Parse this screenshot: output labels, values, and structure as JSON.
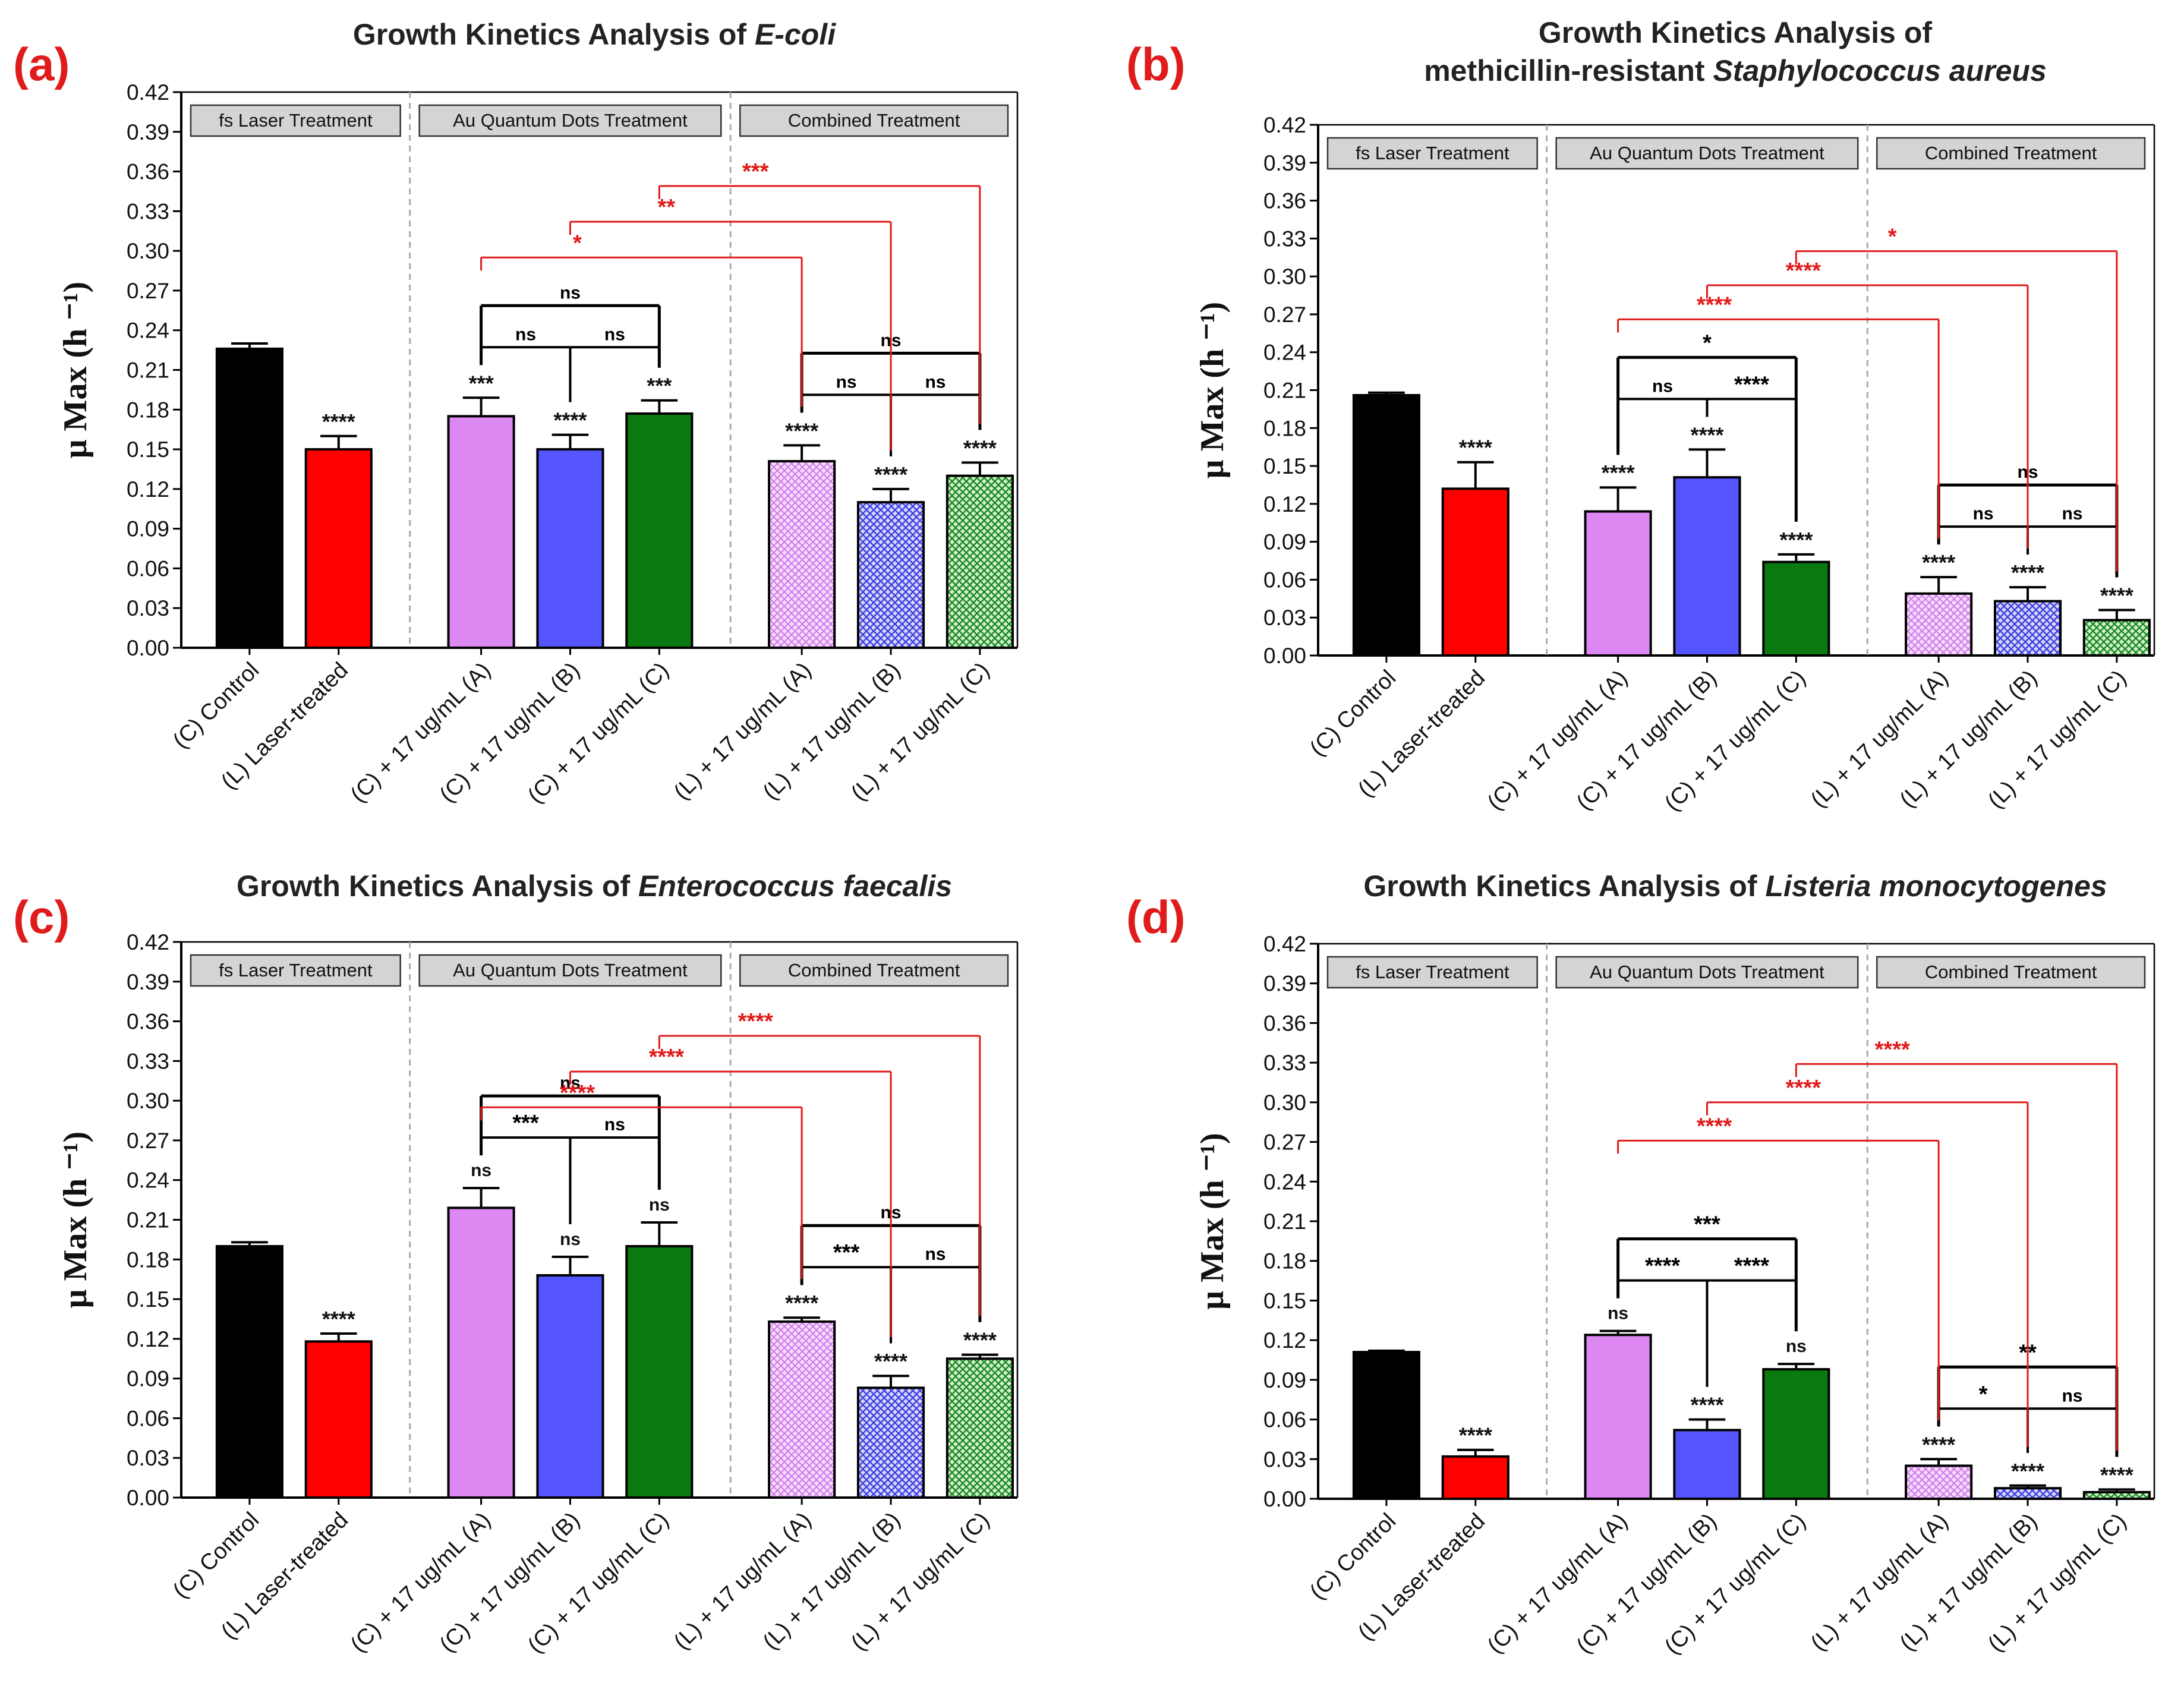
{
  "colors": {
    "control": "#000000",
    "laser": "#ff0000",
    "violet": "#dd88f2",
    "blue": "#5555ff",
    "green": "#0a7a10",
    "violet_light": "#f0c8f8",
    "blue_light": "#b8b8f4",
    "green_light": "#a8dca0",
    "sig_red": "#e01b1b",
    "sig_black": "#000000",
    "group_box": "#d4d4d4"
  },
  "chart_data": [
    {
      "type": "bar",
      "panel": "(a)",
      "title_plain": "Growth Kinetics Analysis of ",
      "title_italic": "E-coli",
      "title_line2_plain": "",
      "title_line2_italic": "",
      "ylabel": "μ Max (h ⁻¹)",
      "ylim": [
        0,
        0.42
      ],
      "yticks": [
        "0.00",
        "0.03",
        "0.06",
        "0.09",
        "0.12",
        "0.15",
        "0.18",
        "0.21",
        "0.24",
        "0.27",
        "0.30",
        "0.33",
        "0.36",
        "0.39",
        "0.42"
      ],
      "groups": [
        "fs Laser Treatment",
        "Au Quantum Dots Treatment",
        "Combined Treatment"
      ],
      "categories": [
        "(C) Control",
        "(L) Laser-treated",
        "(C) + 17 ug/mL (A)",
        "(C) + 17 ug/mL (B)",
        "(C) + 17 ug/mL (C)",
        "(L) + 17 ug/mL (A)",
        "(L) + 17 ug/mL (B)",
        "(L) + 17 ug/mL (C)"
      ],
      "values": [
        0.226,
        0.15,
        0.175,
        0.15,
        0.177,
        0.141,
        0.11,
        0.13
      ],
      "errors": [
        0.004,
        0.01,
        0.014,
        0.011,
        0.01,
        0.012,
        0.01,
        0.01
      ],
      "bar_sig": [
        "",
        "****",
        "***",
        "****",
        "***",
        "****",
        "****",
        "****"
      ],
      "brackets": [
        {
          "from": 2,
          "to": 3,
          "label": "ns",
          "color": "black"
        },
        {
          "from": 3,
          "to": 4,
          "label": "ns",
          "color": "black"
        },
        {
          "from": 2,
          "to": 4,
          "label": "ns",
          "color": "black"
        },
        {
          "from": 5,
          "to": 6,
          "label": "ns",
          "color": "black"
        },
        {
          "from": 6,
          "to": 7,
          "label": "ns",
          "color": "black"
        },
        {
          "from": 5,
          "to": 7,
          "label": "ns",
          "color": "black"
        },
        {
          "from": 2,
          "to": 5,
          "label": "*",
          "color": "red"
        },
        {
          "from": 3,
          "to": 6,
          "label": "**",
          "color": "red"
        },
        {
          "from": 4,
          "to": 7,
          "label": "***",
          "color": "red"
        }
      ]
    },
    {
      "type": "bar",
      "panel": "(b)",
      "title_plain": "Growth Kinetics Analysis of",
      "title_italic": "",
      "title_line2_plain": "methicillin-resistant ",
      "title_line2_italic": "Staphylococcus aureus",
      "ylabel": "μ Max (h ⁻¹)",
      "ylim": [
        0,
        0.42
      ],
      "yticks": [
        "0.00",
        "0.03",
        "0.06",
        "0.09",
        "0.12",
        "0.15",
        "0.18",
        "0.21",
        "0.24",
        "0.27",
        "0.30",
        "0.33",
        "0.36",
        "0.39",
        "0.42"
      ],
      "groups": [
        "fs Laser Treatment",
        "Au Quantum Dots Treatment",
        "Combined Treatment"
      ],
      "categories": [
        "(C) Control",
        "(L) Laser-treated",
        "(C) + 17 ug/mL (A)",
        "(C) + 17 ug/mL (B)",
        "(C) + 17 ug/mL (C)",
        "(L) + 17 ug/mL (A)",
        "(L) + 17 ug/mL (B)",
        "(L) + 17 ug/mL (C)"
      ],
      "values": [
        0.206,
        0.132,
        0.114,
        0.141,
        0.074,
        0.049,
        0.043,
        0.028
      ],
      "errors": [
        0.002,
        0.021,
        0.019,
        0.022,
        0.006,
        0.013,
        0.011,
        0.008
      ],
      "bar_sig": [
        "",
        "****",
        "****",
        "****",
        "****",
        "****",
        "****",
        "****"
      ],
      "brackets": [
        {
          "from": 2,
          "to": 3,
          "label": "ns",
          "color": "black"
        },
        {
          "from": 3,
          "to": 4,
          "label": "****",
          "color": "black"
        },
        {
          "from": 2,
          "to": 4,
          "label": "*",
          "color": "black"
        },
        {
          "from": 5,
          "to": 6,
          "label": "ns",
          "color": "black"
        },
        {
          "from": 6,
          "to": 7,
          "label": "ns",
          "color": "black"
        },
        {
          "from": 5,
          "to": 7,
          "label": "ns",
          "color": "black"
        },
        {
          "from": 2,
          "to": 5,
          "label": "****",
          "color": "red"
        },
        {
          "from": 3,
          "to": 6,
          "label": "****",
          "color": "red"
        },
        {
          "from": 4,
          "to": 7,
          "label": "*",
          "color": "red"
        }
      ]
    },
    {
      "type": "bar",
      "panel": "(c)",
      "title_plain": "Growth Kinetics Analysis of ",
      "title_italic": "Enterococcus faecalis",
      "title_line2_plain": "",
      "title_line2_italic": "",
      "ylabel": "μ Max (h ⁻¹)",
      "ylim": [
        0,
        0.42
      ],
      "yticks": [
        "0.00",
        "0.03",
        "0.06",
        "0.09",
        "0.12",
        "0.15",
        "0.18",
        "0.21",
        "0.24",
        "0.27",
        "0.30",
        "0.33",
        "0.36",
        "0.39",
        "0.42"
      ],
      "groups": [
        "fs Laser Treatment",
        "Au Quantum Dots Treatment",
        "Combined Treatment"
      ],
      "categories": [
        "(C) Control",
        "(L) Laser-treated",
        "(C) + 17 ug/mL (A)",
        "(C) + 17 ug/mL (B)",
        "(C) + 17 ug/mL (C)",
        "(L) + 17 ug/mL (A)",
        "(L) + 17 ug/mL (B)",
        "(L) + 17 ug/mL (C)"
      ],
      "values": [
        0.19,
        0.118,
        0.219,
        0.168,
        0.19,
        0.133,
        0.083,
        0.105
      ],
      "errors": [
        0.003,
        0.006,
        0.015,
        0.014,
        0.018,
        0.003,
        0.009,
        0.003
      ],
      "bar_sig": [
        "",
        "****",
        "ns",
        "ns",
        "ns",
        "****",
        "****",
        "****"
      ],
      "brackets": [
        {
          "from": 2,
          "to": 3,
          "label": "***",
          "color": "black"
        },
        {
          "from": 3,
          "to": 4,
          "label": "ns",
          "color": "black"
        },
        {
          "from": 2,
          "to": 4,
          "label": "ns",
          "color": "black"
        },
        {
          "from": 5,
          "to": 6,
          "label": "***",
          "color": "black"
        },
        {
          "from": 6,
          "to": 7,
          "label": "ns",
          "color": "black"
        },
        {
          "from": 5,
          "to": 7,
          "label": "ns",
          "color": "black"
        },
        {
          "from": 2,
          "to": 5,
          "label": "****",
          "color": "red"
        },
        {
          "from": 3,
          "to": 6,
          "label": "****",
          "color": "red"
        },
        {
          "from": 4,
          "to": 7,
          "label": "****",
          "color": "red"
        }
      ]
    },
    {
      "type": "bar",
      "panel": "(d)",
      "title_plain": "Growth Kinetics Analysis of ",
      "title_italic": "Listeria monocytogenes",
      "title_line2_plain": "",
      "title_line2_italic": "",
      "ylabel": "μ Max (h ⁻¹)",
      "ylim": [
        0,
        0.42
      ],
      "yticks": [
        "0.00",
        "0.03",
        "0.06",
        "0.09",
        "0.12",
        "0.15",
        "0.18",
        "0.21",
        "0.24",
        "0.27",
        "0.30",
        "0.33",
        "0.36",
        "0.39",
        "0.42"
      ],
      "groups": [
        "fs Laser Treatment",
        "Au Quantum Dots Treatment",
        "Combined Treatment"
      ],
      "categories": [
        "(C) Control",
        "(L) Laser-treated",
        "(C) + 17 ug/mL (A)",
        "(C) + 17 ug/mL (B)",
        "(C) + 17 ug/mL (C)",
        "(L) + 17 ug/mL (A)",
        "(L) + 17 ug/mL (B)",
        "(L) + 17 ug/mL (C)"
      ],
      "values": [
        0.111,
        0.032,
        0.124,
        0.052,
        0.098,
        0.025,
        0.008,
        0.005
      ],
      "errors": [
        0.001,
        0.005,
        0.003,
        0.008,
        0.004,
        0.005,
        0.002,
        0.002
      ],
      "bar_sig": [
        "",
        "****",
        "ns",
        "****",
        "ns",
        "****",
        "****",
        "****"
      ],
      "brackets": [
        {
          "from": 2,
          "to": 3,
          "label": "****",
          "color": "black"
        },
        {
          "from": 3,
          "to": 4,
          "label": "****",
          "color": "black"
        },
        {
          "from": 2,
          "to": 4,
          "label": "***",
          "color": "black"
        },
        {
          "from": 5,
          "to": 6,
          "label": "*",
          "color": "black"
        },
        {
          "from": 6,
          "to": 7,
          "label": "ns",
          "color": "black"
        },
        {
          "from": 5,
          "to": 7,
          "label": "**",
          "color": "black"
        },
        {
          "from": 2,
          "to": 5,
          "label": "****",
          "color": "red"
        },
        {
          "from": 3,
          "to": 6,
          "label": "****",
          "color": "red"
        },
        {
          "from": 4,
          "to": 7,
          "label": "****",
          "color": "red"
        }
      ]
    }
  ]
}
